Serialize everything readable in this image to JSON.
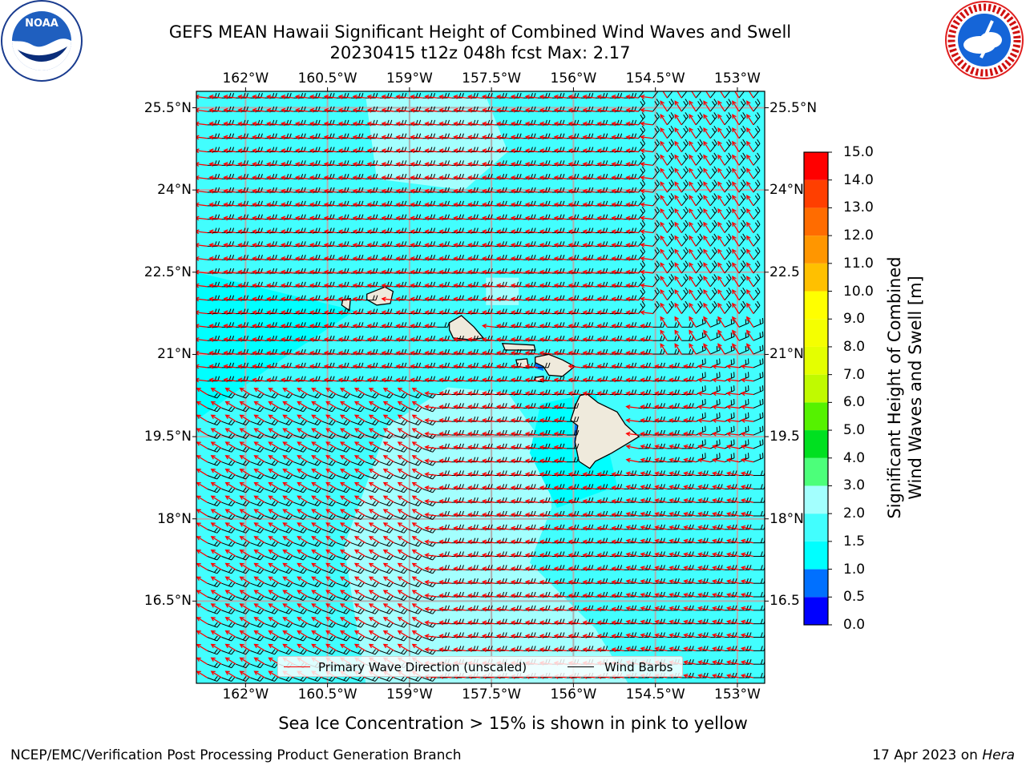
{
  "header": {
    "title_line1": "GEFS MEAN Hawaii Significant Height of Combined Wind Waves and Swell",
    "title_line2": "20230415 t12z 048h fcst   Max: 2.17"
  },
  "logos": {
    "left": {
      "name": "NOAA",
      "icon": "noaa-logo"
    },
    "right": {
      "name": "NATIONAL WEATHER SERVICE",
      "icon": "nws-logo"
    }
  },
  "map": {
    "lon_labels": [
      "162°W",
      "160.5°W",
      "159°W",
      "157.5°W",
      "156°W",
      "154.5°W",
      "153°W"
    ],
    "lon_values": [
      -162,
      -160.5,
      -159,
      -157.5,
      -156,
      -154.5,
      -153
    ],
    "lat_labels_left": [
      "25.5°N",
      "24°N",
      "22.5°N",
      "21°N",
      "19.5°N",
      "18°N",
      "16.5°N"
    ],
    "lat_labels_right": [
      "25.5°N",
      "24°N",
      "22.5",
      "21°N",
      "19.5",
      "18°N",
      "16.5"
    ],
    "lat_values": [
      25.5,
      24,
      22.5,
      21,
      19.5,
      18,
      16.5
    ],
    "extent": {
      "lon_min": -162.9,
      "lon_max": -152.5,
      "lat_min": 15.0,
      "lat_max": 25.8
    },
    "colors": {
      "ocean_1_1p5": "#00ffff",
      "ocean_1p5_2": "#42fefe",
      "ocean_2_3": "#a3fffe",
      "land": "#efeadc",
      "wave_arrow": "#ff0000",
      "barb": "#000000",
      "grid": "#b0b0b0"
    }
  },
  "legend": {
    "primary_wave": "Primary Wave Direction (unscaled)",
    "wind_barbs": "Wind Barbs"
  },
  "colorbar": {
    "title_line1": "Significant Height of Combined",
    "title_line2": "Wind Waves and Swell [m]",
    "ticks": [
      "15.0",
      "14.0",
      "13.0",
      "12.0",
      "11.0",
      "10.0",
      "9.0",
      "8.0",
      "7.0",
      "6.0",
      "5.0",
      "4.0",
      "3.0",
      "2.0",
      "1.5",
      "1.0",
      "0.5",
      "0.0"
    ],
    "bins": [
      {
        "lo": 0.0,
        "hi": 0.5,
        "color": "#0000ff"
      },
      {
        "lo": 0.5,
        "hi": 1.0,
        "color": "#0070ff"
      },
      {
        "lo": 1.0,
        "hi": 1.5,
        "color": "#00ffff"
      },
      {
        "lo": 1.5,
        "hi": 2.0,
        "color": "#42fefe"
      },
      {
        "lo": 2.0,
        "hi": 3.0,
        "color": "#a3fffe"
      },
      {
        "lo": 3.0,
        "hi": 4.0,
        "color": "#4cff7a"
      },
      {
        "lo": 4.0,
        "hi": 5.0,
        "color": "#00e020"
      },
      {
        "lo": 5.0,
        "hi": 6.0,
        "color": "#55f200"
      },
      {
        "lo": 6.0,
        "hi": 7.0,
        "color": "#c0fa00"
      },
      {
        "lo": 7.0,
        "hi": 8.0,
        "color": "#e4ff00"
      },
      {
        "lo": 8.0,
        "hi": 9.0,
        "color": "#f5ff00"
      },
      {
        "lo": 9.0,
        "hi": 10.0,
        "color": "#ffff00"
      },
      {
        "lo": 10.0,
        "hi": 11.0,
        "color": "#ffc000"
      },
      {
        "lo": 11.0,
        "hi": 12.0,
        "color": "#ff9600"
      },
      {
        "lo": 12.0,
        "hi": 13.0,
        "color": "#ff6c00"
      },
      {
        "lo": 13.0,
        "hi": 14.0,
        "color": "#ff3f00"
      },
      {
        "lo": 14.0,
        "hi": 15.0,
        "color": "#ff0000"
      }
    ]
  },
  "note": "Sea Ice Concentration > 15% is shown in pink to yellow",
  "footer": {
    "left": "NCEP/EMC/Verification Post Processing Product Generation Branch",
    "right_prefix": "17 Apr 2023 on ",
    "right_machine": "Hera"
  }
}
